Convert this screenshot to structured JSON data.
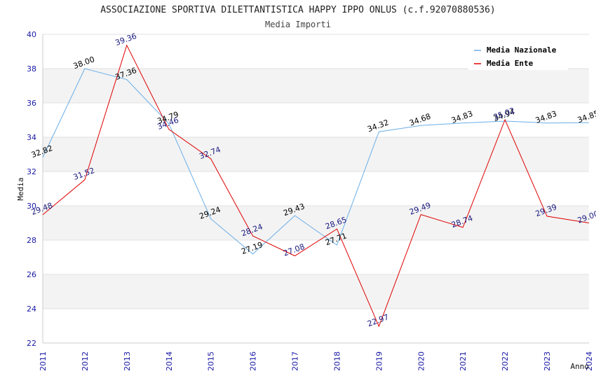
{
  "chart_data": {
    "type": "line",
    "title": "ASSOCIAZIONE SPORTIVA DILETTANTISTICA HAPPY IPPO ONLUS (c.f.92070880536)",
    "subtitle": "Media Importi",
    "xlabel": "Anno",
    "ylabel": "Media",
    "ylim": [
      22,
      40
    ],
    "yticks": [
      "22",
      "24",
      "26",
      "28",
      "30",
      "32",
      "34",
      "36",
      "38",
      "40"
    ],
    "x": [
      "2011",
      "2012",
      "2013",
      "2014",
      "2015",
      "2016",
      "2017",
      "2018",
      "2019",
      "2020",
      "2021",
      "2022",
      "2023",
      "2024"
    ],
    "legend_position": "top-right",
    "grid": true,
    "series": [
      {
        "name": "Media Nazionale",
        "color": "#6aaee8",
        "label_color": "#000000",
        "values": [
          32.82,
          38.0,
          37.36,
          34.79,
          29.24,
          27.19,
          29.43,
          27.71,
          34.32,
          34.68,
          34.83,
          34.94,
          34.83,
          34.85
        ],
        "labels": [
          "32.82",
          "38.00",
          "37.36",
          "34.79",
          "29.24",
          "27.19",
          "29.43",
          "27.71",
          "34.32",
          "34.68",
          "34.83",
          "34.94",
          "34.83",
          "34.85"
        ]
      },
      {
        "name": "Media Ente",
        "color": "#e00000",
        "label_color": "#1a1a80",
        "values": [
          29.48,
          31.52,
          39.36,
          34.46,
          32.74,
          28.24,
          27.08,
          28.65,
          22.97,
          29.49,
          28.74,
          35.02,
          29.39,
          29.0
        ],
        "labels": [
          "29.48",
          "31.52",
          "39.36",
          "34.46",
          "32.74",
          "28.24",
          "27.08",
          "28.65",
          "22.97",
          "29.49",
          "28.74",
          "35.02",
          "29.39",
          "29.00"
        ]
      }
    ]
  }
}
